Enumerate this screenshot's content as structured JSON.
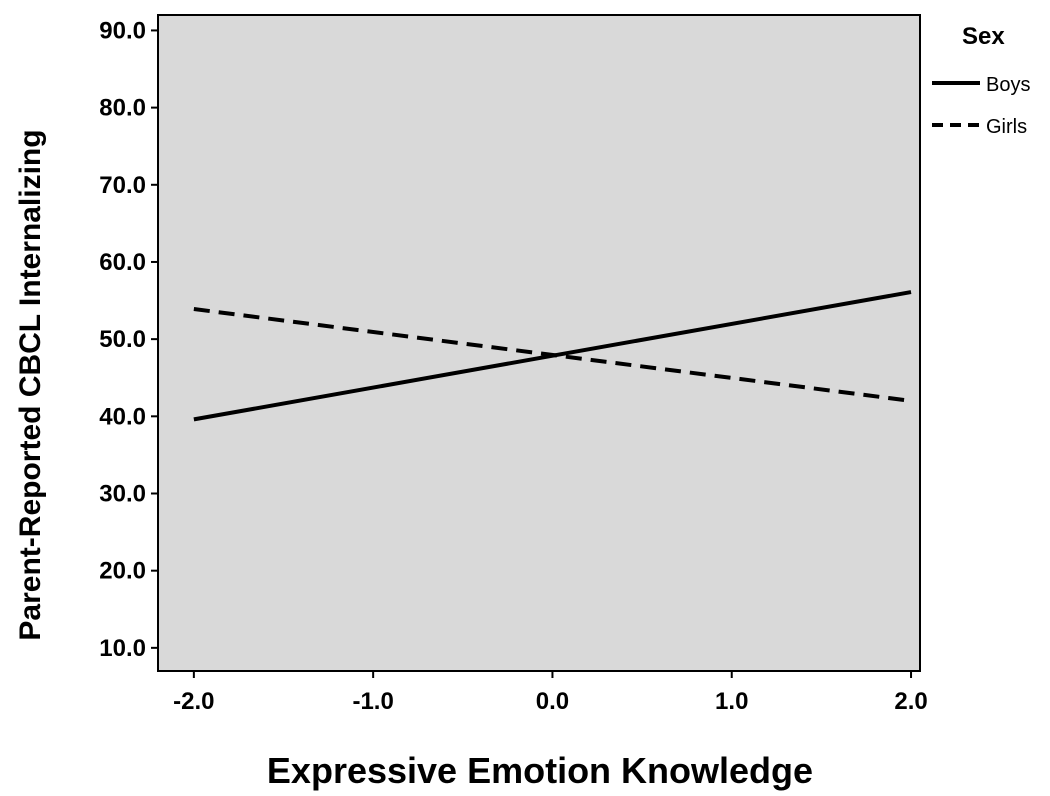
{
  "chart_data": {
    "type": "line",
    "xlabel": "Expressive Emotion Knowledge",
    "ylabel": "Parent-Reported CBCL Internalizing",
    "xlim": [
      -2.2,
      2.05
    ],
    "ylim": [
      7.0,
      92.0
    ],
    "x_ticks": [
      -2.0,
      -1.0,
      0.0,
      1.0,
      2.0
    ],
    "x_tick_labels": [
      "-2.0",
      "-1.0",
      "0.0",
      "1.0",
      "2.0"
    ],
    "y_ticks": [
      10,
      20,
      30,
      40,
      50,
      60,
      70,
      80,
      90
    ],
    "y_tick_labels": [
      "10.0",
      "20.0",
      "30.0",
      "40.0",
      "50.0",
      "60.0",
      "70.0",
      "80.0",
      "90.0"
    ],
    "grid": false,
    "legend": {
      "title": "Sex",
      "position": "outside-right-top"
    },
    "series": [
      {
        "name": "Boys",
        "style": "solid",
        "color": "#000000",
        "x": [
          -2.0,
          2.0
        ],
        "y": [
          39.6,
          56.1
        ]
      },
      {
        "name": "Girls",
        "style": "dashed",
        "color": "#000000",
        "x": [
          -2.0,
          2.0
        ],
        "y": [
          53.9,
          42.0
        ]
      }
    ],
    "plot_background": "#d9d9d9"
  }
}
